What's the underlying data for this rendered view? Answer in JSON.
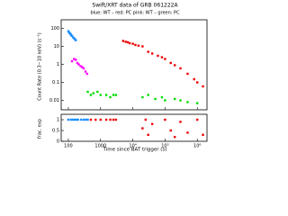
{
  "chart_data": [
    {
      "type": "scatter",
      "title": "Swift/XRT data of GRB 061222A",
      "subtitle": "blue: WT – red: PC     pink: WT – green: PC",
      "ylabel": "Count Rate (0.3−10 keV) (s⁻¹)",
      "log_x": true,
      "log_y": true,
      "xlim": [
        60,
        2000000
      ],
      "ylim": [
        0.003,
        300
      ],
      "yticks": [
        0.01,
        0.1,
        1,
        10,
        100
      ],
      "series": [
        {
          "name": "WT",
          "color": "#1e90ff",
          "x": [
            100,
            105,
            110,
            115,
            120,
            125,
            130,
            140,
            150,
            160,
            170
          ],
          "values": [
            70,
            60,
            55,
            50,
            45,
            40,
            38,
            32,
            28,
            25,
            22
          ]
        },
        {
          "name": "WT",
          "color": "#ff00ff",
          "x": [
            130,
            150,
            170,
            190,
            210,
            240,
            270,
            300,
            340,
            380
          ],
          "values": [
            1.5,
            2,
            1.8,
            1.2,
            1,
            0.8,
            0.7,
            0.6,
            0.4,
            0.3
          ]
        },
        {
          "name": "PC",
          "color": "#00dd00",
          "x": [
            400,
            500,
            600,
            800,
            1000,
            1500,
            2000,
            2500,
            3000,
            20000,
            30000,
            50000,
            80000,
            100000,
            200000,
            300000,
            500000,
            1000000
          ],
          "values": [
            0.03,
            0.02,
            0.025,
            0.03,
            0.02,
            0.02,
            0.015,
            0.02,
            0.02,
            0.015,
            0.02,
            0.012,
            0.015,
            0.01,
            0.012,
            0.01,
            0.008,
            0.007
          ]
        },
        {
          "name": "PC",
          "color": "#ee0000",
          "x": [
            5000,
            6000,
            7000,
            8000,
            10000,
            12000,
            15000,
            20000,
            30000,
            40000,
            60000,
            80000,
            100000,
            150000,
            200000,
            300000,
            500000,
            800000,
            1000000,
            1500000
          ],
          "values": [
            20,
            18,
            17,
            15,
            14,
            12,
            11,
            10,
            5,
            4,
            3,
            2.5,
            2,
            1.2,
            0.9,
            0.6,
            0.3,
            0.15,
            0.1,
            0.06
          ]
        }
      ]
    },
    {
      "type": "scatter",
      "ylabel": "frac. exp",
      "xlabel": "Time since BAT trigger (s)",
      "log_x": true,
      "log_y": false,
      "xlim": [
        60,
        2000000
      ],
      "ylim": [
        0,
        1.25
      ],
      "xticks": [
        100,
        1000,
        {
          "value": 10000,
          "label": "10⁴"
        },
        {
          "value": 100000,
          "label": "10⁵"
        },
        {
          "value": 1000000,
          "label": "10⁶"
        }
      ],
      "yticks": [
        0,
        0.5,
        1
      ],
      "series": [
        {
          "color": "#1e90ff",
          "x": [
            100,
            120,
            140,
            160,
            180,
            200,
            250,
            300,
            350,
            400
          ],
          "values": [
            1,
            1,
            1,
            1,
            1,
            1,
            1,
            1,
            1,
            1
          ]
        },
        {
          "color": "#ee0000",
          "x": [
            500,
            700,
            1000,
            1500,
            2000,
            2500,
            3000,
            20000,
            25000,
            30000,
            40000,
            100000,
            150000,
            200000,
            300000,
            500000,
            1000000,
            1500000
          ],
          "values": [
            1,
            1,
            1,
            1,
            1,
            1,
            1,
            0.6,
            1,
            0.3,
            0.8,
            1,
            0.5,
            0.2,
            0.9,
            0.4,
            1,
            0.3
          ]
        }
      ]
    }
  ]
}
